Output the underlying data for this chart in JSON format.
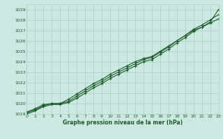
{
  "xlabel": "Graphe pression niveau de la mer (hPa)",
  "ylim": [
    1019,
    1029.5
  ],
  "xlim": [
    0,
    23
  ],
  "yticks": [
    1019,
    1020,
    1021,
    1022,
    1023,
    1024,
    1025,
    1026,
    1027,
    1028,
    1029
  ],
  "xticks": [
    0,
    1,
    2,
    3,
    4,
    5,
    6,
    7,
    8,
    9,
    10,
    11,
    12,
    13,
    14,
    15,
    16,
    17,
    18,
    19,
    20,
    21,
    22,
    23
  ],
  "background_color": "#cce8e0",
  "grid_color": "#a8cfc8",
  "line_color": "#1a5c2a",
  "series1": [
    1019.2,
    1019.5,
    1019.9,
    1020.0,
    1020.0,
    1020.4,
    1020.9,
    1021.4,
    1021.9,
    1022.3,
    1022.8,
    1023.2,
    1023.6,
    1024.0,
    1024.3,
    1024.5,
    1025.0,
    1025.5,
    1026.0,
    1026.5,
    1027.0,
    1027.3,
    1027.7,
    1028.1
  ],
  "series2": [
    1019.1,
    1019.4,
    1019.8,
    1020.0,
    1020.0,
    1020.2,
    1020.7,
    1021.2,
    1021.7,
    1022.1,
    1022.6,
    1023.0,
    1023.4,
    1023.8,
    1024.2,
    1024.4,
    1024.9,
    1025.4,
    1026.0,
    1026.5,
    1027.1,
    1027.5,
    1028.0,
    1028.5
  ],
  "series3": [
    1019.0,
    1019.3,
    1019.7,
    1019.9,
    1019.9,
    1020.1,
    1020.5,
    1021.0,
    1021.5,
    1021.9,
    1022.4,
    1022.8,
    1023.2,
    1023.6,
    1024.0,
    1024.2,
    1024.7,
    1025.2,
    1025.8,
    1026.3,
    1026.9,
    1027.3,
    1027.8,
    1029.0
  ]
}
